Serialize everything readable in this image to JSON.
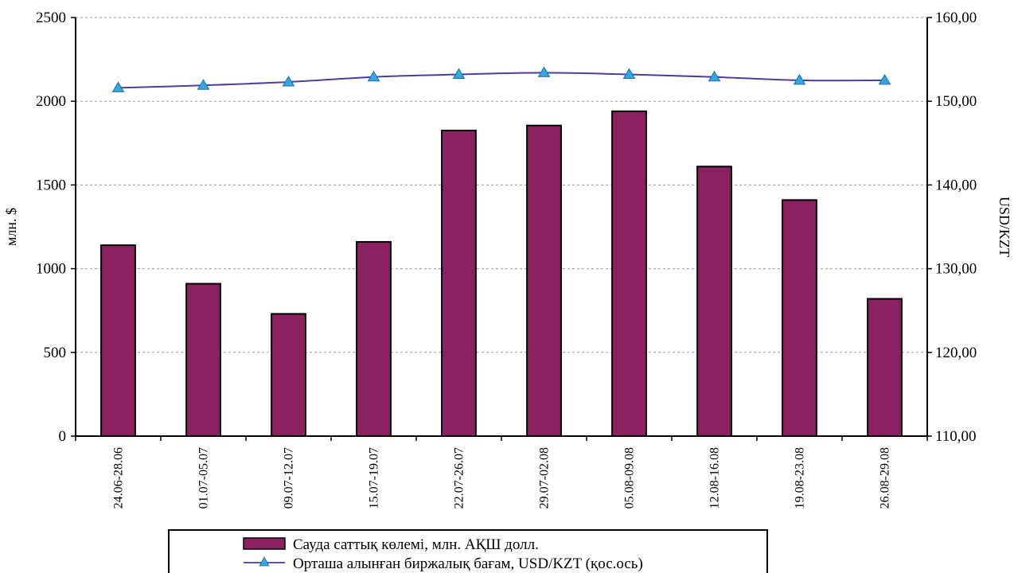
{
  "chart_data": {
    "type": "bar",
    "categories": [
      "24.06-28.06",
      "01.07-05.07",
      "09.07-12.07",
      "15.07-19.07",
      "22.07-26.07",
      "29.07-02.08",
      "05.08-09.08",
      "12.08-16.08",
      "19.08-23.08",
      "26.08-29.08"
    ],
    "series": [
      {
        "name": "Сауда саттық көлемі, млн. АҚШ долл.",
        "type": "bar",
        "axis": "left",
        "values": [
          1140,
          910,
          730,
          1160,
          1825,
          1855,
          1940,
          1610,
          1410,
          820
        ],
        "color": "#8B2160"
      },
      {
        "name": "Орташа алынған  биржалық бағам, USD/KZT (қос.ось)",
        "type": "line",
        "axis": "right",
        "values": [
          151.6,
          151.9,
          152.3,
          152.9,
          153.2,
          153.4,
          153.2,
          152.9,
          152.5,
          152.5
        ],
        "color": "#4B3BA0",
        "marker_color": "#33A8E0"
      }
    ],
    "ylabel": "млн. $",
    "y2label": "USD/KZT",
    "ylim": [
      0,
      2500
    ],
    "y2lim": [
      110,
      160
    ],
    "yticks": [
      "0",
      "500",
      "1000",
      "1500",
      "2000",
      "2500"
    ],
    "y2ticks": [
      "110,00",
      "120,00",
      "130,00",
      "140,00",
      "150,00",
      "160,00"
    ],
    "grid": true,
    "legend_position": "bottom"
  }
}
